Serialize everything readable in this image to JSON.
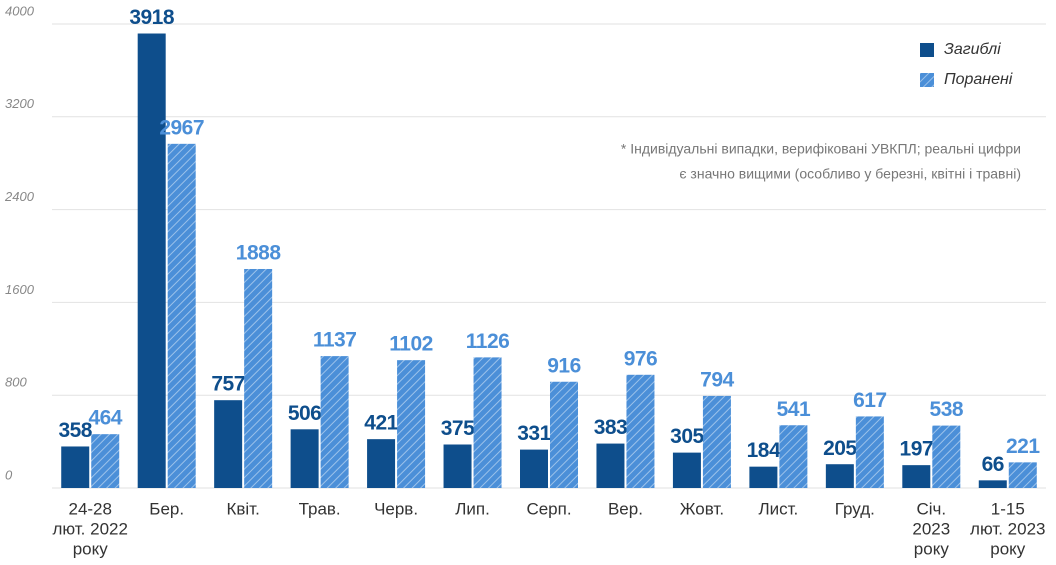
{
  "chart_data": {
    "type": "bar",
    "categories": [
      [
        "24-28",
        "лют. 2022",
        "року"
      ],
      [
        "Бер."
      ],
      [
        "Квіт."
      ],
      [
        "Трав."
      ],
      [
        "Черв."
      ],
      [
        "Лип."
      ],
      [
        "Серп."
      ],
      [
        "Вер."
      ],
      [
        "Жовт."
      ],
      [
        "Лист."
      ],
      [
        "Груд."
      ],
      [
        "Січ.",
        "2023",
        "року"
      ],
      [
        "1-15",
        "лют. 2023",
        "року"
      ]
    ],
    "series": [
      {
        "name": "Загиблі",
        "color": "#0e4e8c",
        "values": [
          358,
          3918,
          757,
          506,
          421,
          375,
          331,
          383,
          305,
          184,
          205,
          197,
          66
        ]
      },
      {
        "name": "Поранені",
        "color": "#4b8fd8",
        "pattern": "hatch",
        "values": [
          464,
          2967,
          1888,
          1137,
          1102,
          1126,
          916,
          976,
          794,
          541,
          617,
          538,
          221
        ]
      }
    ],
    "ylim": [
      0,
      4000
    ],
    "yticks": [
      0,
      800,
      1600,
      2400,
      3200,
      4000
    ],
    "grid": true,
    "legend": "top-right",
    "note": [
      "* Індивідуальні випадки, верифіковані УВКПЛ; реальні цифри",
      "є значно вищими (особливо у березні, квітні і травні)"
    ]
  }
}
